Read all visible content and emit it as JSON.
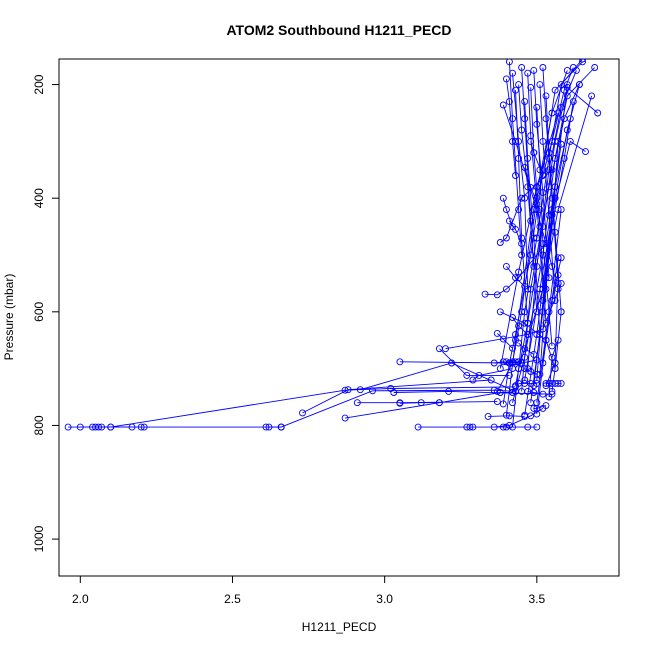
{
  "chart_data": {
    "type": "scatter",
    "title": "ATOM2 Southbound H1211_PECD",
    "xlabel": "H1211_PECD",
    "ylabel": "Pressure (mbar)",
    "xlim": [
      1.93,
      3.77
    ],
    "ylim": [
      1065,
      155
    ],
    "y_reversed": true,
    "x_ticks": [
      2.0,
      2.5,
      3.0,
      3.5
    ],
    "x_tick_labels": [
      "2.0",
      "2.5",
      "3.0",
      "3.5"
    ],
    "y_ticks": [
      200,
      400,
      600,
      800,
      1000
    ],
    "y_tick_labels": [
      "200",
      "400",
      "600",
      "800",
      "1000"
    ],
    "color": "#0000ff",
    "marker": "open-circle",
    "connected_lines": true,
    "grid": false,
    "legend": "none",
    "series": [
      {
        "x": [
          1.96,
          2.1,
          2.21,
          2.66
        ],
        "y": [
          803,
          803,
          803,
          803
        ]
      },
      {
        "x": [
          2.0,
          2.06,
          2.2
        ],
        "y": [
          803,
          803,
          803
        ]
      },
      {
        "x": [
          2.04,
          2.05,
          2.07,
          2.17
        ],
        "y": [
          803,
          803,
          803,
          803
        ]
      },
      {
        "x": [
          2.1,
          2.87,
          3.02,
          3.43
        ],
        "y": [
          803,
          738,
          735,
          732
        ]
      },
      {
        "x": [
          2.61,
          2.62,
          2.66
        ],
        "y": [
          803,
          803,
          803
        ]
      },
      {
        "x": [
          2.66,
          2.96,
          3.36,
          3.43
        ],
        "y": [
          803,
          739,
          738,
          740
        ]
      },
      {
        "x": [
          2.73,
          2.88,
          3.35
        ],
        "y": [
          778,
          737,
          720
        ]
      },
      {
        "x": [
          2.87,
          3.18,
          3.38,
          3.42
        ],
        "y": [
          787,
          760,
          742,
          742
        ]
      },
      {
        "x": [
          2.92,
          3.22,
          3.43
        ],
        "y": [
          737,
          690,
          740
        ]
      },
      {
        "x": [
          3.03,
          3.21,
          3.55
        ],
        "y": [
          742,
          740,
          745
        ]
      },
      {
        "x": [
          3.05,
          3.41,
          3.44
        ],
        "y": [
          688,
          690,
          688
        ]
      },
      {
        "x": [
          3.05,
          3.12,
          3.18
        ],
        "y": [
          761,
          760,
          760
        ]
      },
      {
        "x": [
          2.91,
          3.05,
          3.37
        ],
        "y": [
          760,
          760,
          758
        ]
      },
      {
        "x": [
          3.18,
          3.27,
          3.41
        ],
        "y": [
          665,
          712,
          712
        ]
      },
      {
        "x": [
          3.11,
          3.27,
          3.28,
          3.29,
          3.39,
          3.4,
          3.47,
          3.5
        ],
        "y": [
          803,
          803,
          803,
          803,
          803,
          803,
          803,
          803
        ]
      },
      {
        "x": [
          3.2,
          3.47,
          3.52,
          3.58
        ],
        "y": [
          665,
          640,
          630,
          550
        ]
      },
      {
        "x": [
          3.29,
          3.31,
          3.42
        ],
        "y": [
          720,
          712,
          700
        ]
      },
      {
        "x": [
          3.34,
          3.41,
          3.46
        ],
        "y": [
          784,
          783,
          784
        ]
      },
      {
        "x": [
          3.36,
          3.41,
          3.48,
          3.52
        ],
        "y": [
          803,
          800,
          783,
          770
        ]
      },
      {
        "x": [
          3.37,
          3.39,
          3.42
        ],
        "y": [
          638,
          648,
          664
        ]
      },
      {
        "x": [
          3.33,
          3.37,
          3.4,
          3.44,
          3.53,
          3.58
        ],
        "y": [
          569,
          570,
          560,
          540,
          480,
          305
        ]
      },
      {
        "x": [
          3.36,
          3.39,
          3.45,
          3.5
        ],
        "y": [
          690,
          688,
          690,
          685
        ]
      },
      {
        "x": [
          3.38,
          3.46,
          3.53,
          3.56
        ],
        "y": [
          600,
          620,
          650,
          700
        ]
      },
      {
        "x": [
          3.39,
          3.43,
          3.5,
          3.55,
          3.57
        ],
        "y": [
          236,
          300,
          420,
          520,
          560
        ]
      },
      {
        "x": [
          3.38,
          3.4,
          3.45,
          3.55
        ],
        "y": [
          478,
          470,
          400,
          350
        ]
      },
      {
        "x": [
          3.37,
          3.42,
          3.45,
          3.5,
          3.55,
          3.59,
          3.62
        ],
        "y": [
          740,
          690,
          600,
          400,
          300,
          210,
          170
        ]
      },
      {
        "x": [
          3.38,
          3.44,
          3.5,
          3.57
        ],
        "y": [
          700,
          530,
          380,
          250
        ]
      },
      {
        "x": [
          3.39,
          3.41,
          3.43,
          3.48,
          3.52,
          3.56,
          3.65
        ],
        "y": [
          762,
          690,
          640,
          500,
          350,
          210,
          160
        ]
      },
      {
        "x": [
          3.4,
          3.43,
          3.49,
          3.55,
          3.6
        ],
        "y": [
          782,
          650,
          420,
          250,
          175
        ]
      },
      {
        "x": [
          3.42,
          3.44,
          3.52,
          3.57,
          3.68
        ],
        "y": [
          803,
          700,
          560,
          420,
          220
        ]
      },
      {
        "x": [
          3.42,
          3.46,
          3.52,
          3.56,
          3.6,
          3.69
        ],
        "y": [
          760,
          680,
          500,
          330,
          220,
          170
        ]
      },
      {
        "x": [
          3.43,
          3.47,
          3.52,
          3.56,
          3.6,
          3.7
        ],
        "y": [
          730,
          620,
          450,
          300,
          205,
          250
        ]
      },
      {
        "x": [
          3.44,
          3.46,
          3.5,
          3.54,
          3.58,
          3.65
        ],
        "y": [
          700,
          600,
          470,
          330,
          200,
          155
        ]
      },
      {
        "x": [
          3.45,
          3.48,
          3.54,
          3.59,
          3.64
        ],
        "y": [
          740,
          560,
          380,
          260,
          200
        ]
      },
      {
        "x": [
          3.46,
          3.5,
          3.55,
          3.61,
          3.66
        ],
        "y": [
          782,
          640,
          430,
          300,
          318
        ]
      },
      {
        "x": [
          3.46,
          3.51,
          3.56,
          3.6,
          3.64
        ],
        "y": [
          720,
          560,
          400,
          280,
          200
        ]
      },
      {
        "x": [
          3.47,
          3.5,
          3.54,
          3.58,
          3.63
        ],
        "y": [
          700,
          520,
          350,
          240,
          175
        ]
      },
      {
        "x": [
          3.48,
          3.52,
          3.55,
          3.59,
          3.62
        ],
        "y": [
          760,
          600,
          450,
          330,
          230
        ]
      },
      {
        "x": [
          3.49,
          3.53,
          3.56,
          3.61
        ],
        "y": [
          730,
          540,
          380,
          260
        ]
      },
      {
        "x": [
          3.5,
          3.53,
          3.57
        ],
        "y": [
          780,
          650,
          505
        ]
      },
      {
        "x": [
          3.5,
          3.52,
          3.55,
          3.6
        ],
        "y": [
          720,
          580,
          420,
          200
        ]
      },
      {
        "x": [
          3.5,
          3.54,
          3.58
        ],
        "y": [
          760,
          600,
          420
        ]
      },
      {
        "x": [
          3.51,
          3.53,
          3.56,
          3.57
        ],
        "y": [
          710,
          560,
          380,
          300
        ]
      },
      {
        "x": [
          3.52,
          3.55,
          3.58
        ],
        "y": [
          690,
          580,
          505
        ]
      },
      {
        "x": [
          3.53,
          3.56,
          3.57
        ],
        "y": [
          730,
          690,
          535
        ]
      },
      {
        "x": [
          3.54,
          3.55,
          3.57
        ],
        "y": [
          750,
          680,
          650
        ]
      },
      {
        "x": [
          3.55,
          3.56,
          3.58
        ],
        "y": [
          740,
          700,
          600
        ]
      },
      {
        "x": [
          3.56,
          3.57,
          3.58
        ],
        "y": [
          726,
          726,
          726
        ]
      },
      {
        "x": [
          3.53,
          3.54,
          3.55
        ],
        "y": [
          726,
          726,
          726
        ]
      },
      {
        "x": [
          3.44,
          3.46,
          3.48,
          3.5
        ],
        "y": [
          726,
          726,
          726,
          726
        ]
      },
      {
        "x": [
          3.4,
          3.42,
          3.43,
          3.44
        ],
        "y": [
          688,
          688,
          688,
          688
        ]
      },
      {
        "x": [
          3.4,
          3.41,
          3.42,
          3.43
        ],
        "y": [
          190,
          230,
          300,
          360
        ]
      },
      {
        "x": [
          3.41,
          3.42,
          3.44,
          3.45
        ],
        "y": [
          160,
          260,
          420,
          500
        ]
      },
      {
        "x": [
          3.42,
          3.44,
          3.46,
          3.47
        ],
        "y": [
          180,
          300,
          400,
          560
        ]
      },
      {
        "x": [
          3.43,
          3.44,
          3.45,
          3.47
        ],
        "y": [
          210,
          330,
          470,
          620
        ]
      },
      {
        "x": [
          3.44,
          3.45,
          3.47,
          3.49
        ],
        "y": [
          200,
          280,
          380,
          520
        ]
      },
      {
        "x": [
          3.45,
          3.46,
          3.48,
          3.5
        ],
        "y": [
          170,
          260,
          440,
          600
        ]
      },
      {
        "x": [
          3.46,
          3.47,
          3.49,
          3.51
        ],
        "y": [
          230,
          330,
          470,
          640
        ]
      },
      {
        "x": [
          3.47,
          3.48,
          3.5,
          3.52
        ],
        "y": [
          180,
          290,
          410,
          560
        ]
      },
      {
        "x": [
          3.48,
          3.49,
          3.51,
          3.53
        ],
        "y": [
          205,
          320,
          450,
          620
        ]
      },
      {
        "x": [
          3.49,
          3.5,
          3.52,
          3.54
        ],
        "y": [
          175,
          270,
          390,
          540
        ]
      },
      {
        "x": [
          3.5,
          3.51,
          3.52,
          3.55
        ],
        "y": [
          240,
          350,
          480,
          660
        ]
      },
      {
        "x": [
          3.51,
          3.52,
          3.54,
          3.56
        ],
        "y": [
          200,
          300,
          430,
          580
        ]
      },
      {
        "x": [
          3.52,
          3.53,
          3.55,
          3.57
        ],
        "y": [
          170,
          260,
          400,
          550
        ]
      },
      {
        "x": [
          3.53,
          3.54,
          3.56,
          3.58
        ],
        "y": [
          220,
          320,
          460,
          600
        ]
      },
      {
        "x": [
          3.46,
          3.48,
          3.51
        ],
        "y": [
          346,
          381,
          420
        ]
      },
      {
        "x": [
          3.48,
          3.49,
          3.52
        ],
        "y": [
          300,
          320,
          360
        ]
      },
      {
        "x": [
          3.41,
          3.43,
          3.45
        ],
        "y": [
          440,
          455,
          480
        ]
      },
      {
        "x": [
          3.39,
          3.4,
          3.42
        ],
        "y": [
          400,
          420,
          450
        ]
      },
      {
        "x": [
          3.4,
          3.43,
          3.46
        ],
        "y": [
          520,
          540,
          555
        ]
      },
      {
        "x": [
          3.42,
          3.44,
          3.47
        ],
        "y": [
          610,
          625,
          640
        ]
      },
      {
        "x": [
          3.44,
          3.46,
          3.49
        ],
        "y": [
          655,
          665,
          675
        ]
      },
      {
        "x": [
          3.46,
          3.48,
          3.5
        ],
        "y": [
          700,
          705,
          710
        ]
      },
      {
        "x": [
          3.47,
          3.49,
          3.52
        ],
        "y": [
          740,
          742,
          745
        ]
      },
      {
        "x": [
          3.49,
          3.5,
          3.53
        ],
        "y": [
          770,
          770,
          765
        ]
      }
    ]
  }
}
